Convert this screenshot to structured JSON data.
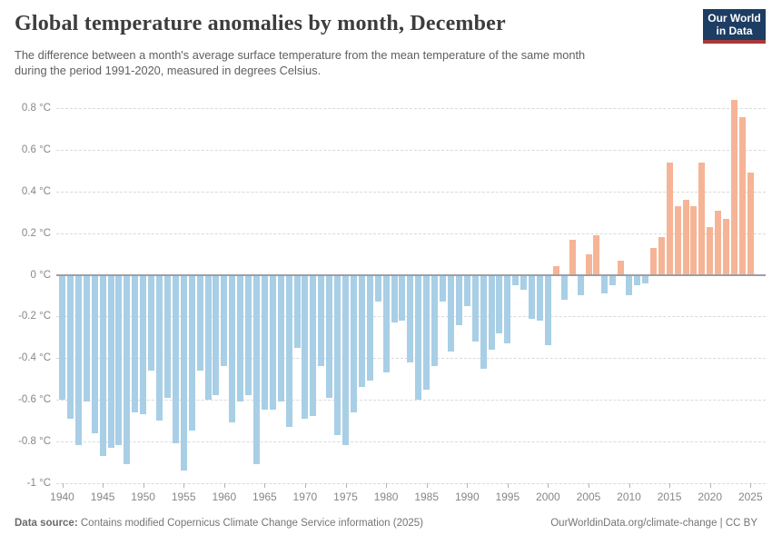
{
  "header": {
    "title": "Global temperature anomalies by month, December",
    "subtitle_line1": "The difference between a month's average surface temperature from the mean temperature of the same month",
    "subtitle_line2": "during the period 1991-2020, measured in degrees Celsius.",
    "logo": {
      "line1": "Our World",
      "line2": "in Data"
    }
  },
  "footer": {
    "source_label": "Data source:",
    "source_text": " Contains modified Copernicus Climate Change Service information (2025)",
    "link_text": "OurWorldinData.org/climate-change | CC BY"
  },
  "chart_data": {
    "type": "bar",
    "title": "Global temperature anomalies by month, December",
    "xlabel": "",
    "ylabel": "",
    "ylim": [
      -1,
      0.8
    ],
    "grid": "horizontal-dashed",
    "legend": "none",
    "unit": "°C",
    "colors": {
      "positive": "#f6b496",
      "negative": "#a8cfe6",
      "zero_line": "#9e9ea4"
    },
    "yticks": [
      0.8,
      0.6,
      0.4,
      0.2,
      0,
      -0.2,
      -0.4,
      -0.6,
      -0.8,
      -1
    ],
    "ytick_labels": [
      "0.8 °C",
      "0.6 °C",
      "0.4 °C",
      "0.2 °C",
      "0 °C",
      "-0.2 °C",
      "-0.4 °C",
      "-0.6 °C",
      "-0.8 °C",
      "-1 °C"
    ],
    "xticks": [
      1940,
      1945,
      1950,
      1955,
      1960,
      1965,
      1970,
      1975,
      1980,
      1985,
      1990,
      1995,
      2000,
      2005,
      2010,
      2015,
      2020,
      2025
    ],
    "x": [
      1940,
      1941,
      1942,
      1943,
      1944,
      1945,
      1946,
      1947,
      1948,
      1949,
      1950,
      1951,
      1952,
      1953,
      1954,
      1955,
      1956,
      1957,
      1958,
      1959,
      1960,
      1961,
      1962,
      1963,
      1964,
      1965,
      1966,
      1967,
      1968,
      1969,
      1970,
      1971,
      1972,
      1973,
      1974,
      1975,
      1976,
      1977,
      1978,
      1979,
      1980,
      1981,
      1982,
      1983,
      1984,
      1985,
      1986,
      1987,
      1988,
      1989,
      1990,
      1991,
      1992,
      1993,
      1994,
      1995,
      1996,
      1997,
      1998,
      1999,
      2000,
      2001,
      2002,
      2003,
      2004,
      2005,
      2006,
      2007,
      2008,
      2009,
      2010,
      2011,
      2012,
      2013,
      2014,
      2015,
      2016,
      2017,
      2018,
      2019,
      2020,
      2021,
      2022,
      2023,
      2024,
      2025
    ],
    "values": [
      -0.6,
      -0.69,
      -0.82,
      -0.61,
      -0.76,
      -0.87,
      -0.83,
      -0.82,
      -0.91,
      -0.66,
      -0.67,
      -0.46,
      -0.7,
      -0.59,
      -0.81,
      -0.94,
      -0.75,
      -0.46,
      -0.6,
      -0.58,
      -0.44,
      -0.71,
      -0.61,
      -0.58,
      -0.91,
      -0.65,
      -0.65,
      -0.61,
      -0.73,
      -0.35,
      -0.69,
      -0.68,
      -0.44,
      -0.59,
      -0.77,
      -0.82,
      -0.66,
      -0.54,
      -0.51,
      -0.13,
      -0.47,
      -0.23,
      -0.22,
      -0.42,
      -0.6,
      -0.55,
      -0.44,
      -0.13,
      -0.37,
      -0.24,
      -0.15,
      -0.32,
      -0.45,
      -0.36,
      -0.28,
      -0.33,
      -0.05,
      -0.07,
      -0.21,
      -0.22,
      -0.34,
      0.04,
      -0.12,
      0.17,
      -0.1,
      0.1,
      0.19,
      -0.09,
      -0.05,
      0.07,
      -0.1,
      -0.05,
      -0.04,
      0.13,
      0.18,
      0.54,
      0.33,
      0.36,
      0.33,
      0.54,
      0.23,
      0.31,
      0.27,
      0.84,
      0.76,
      0.49
    ]
  }
}
